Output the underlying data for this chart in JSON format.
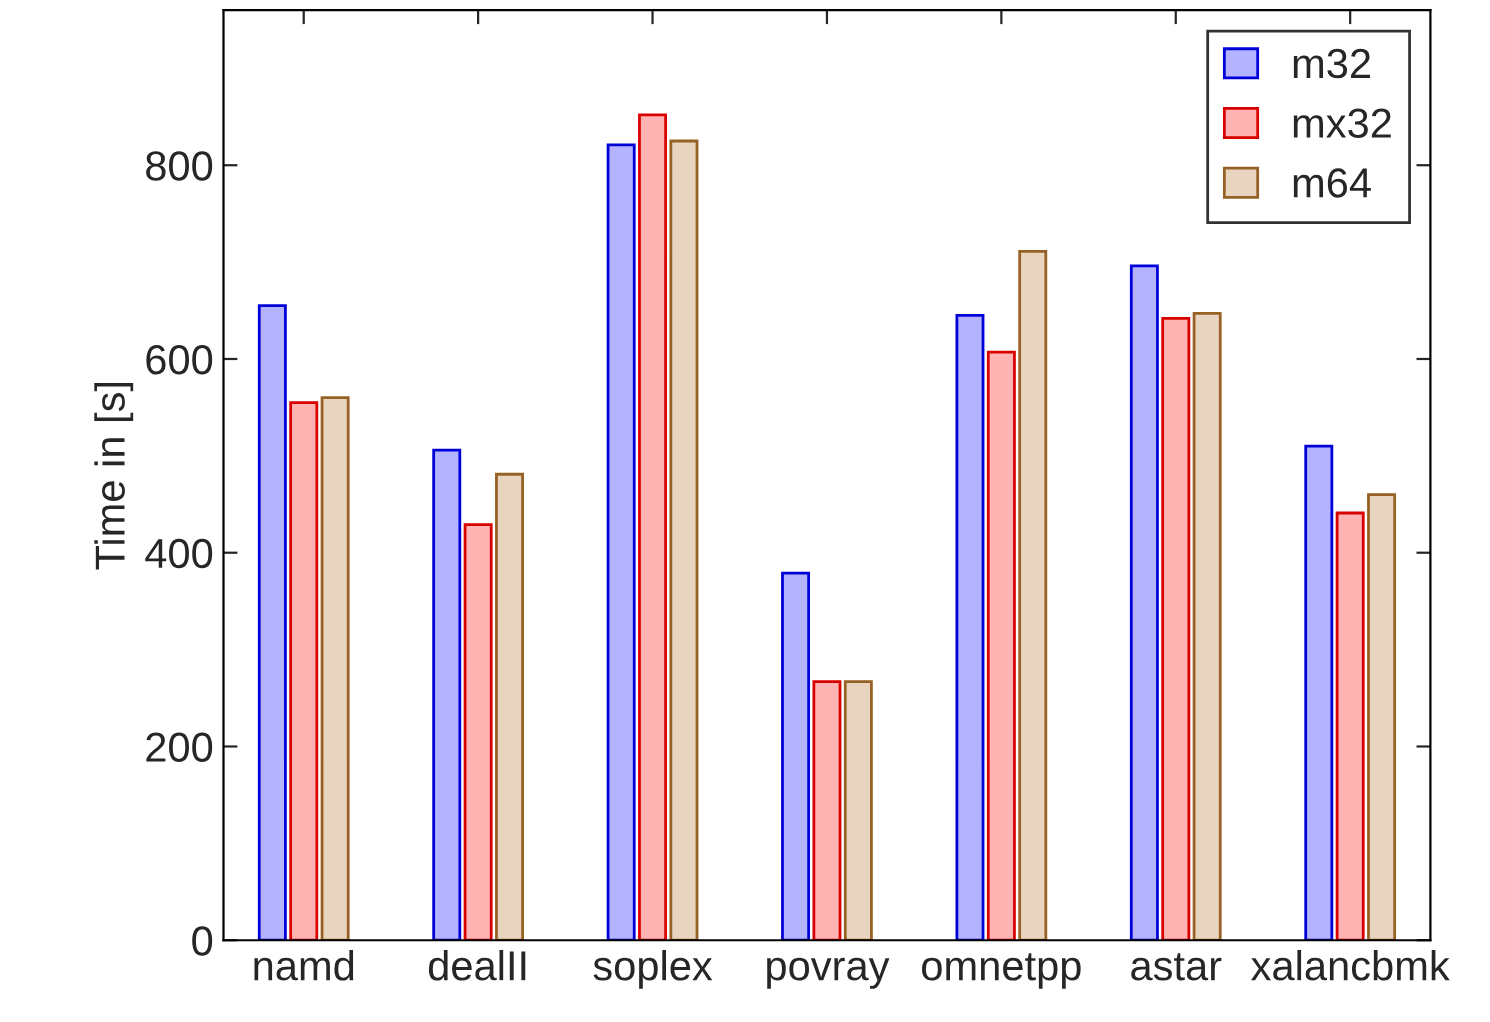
{
  "chart_data": {
    "type": "bar",
    "ylabel": "Time in [s]",
    "categories": [
      "namd",
      "dealII",
      "soplex",
      "povray",
      "omnetpp",
      "astar",
      "xalancbmk"
    ],
    "series": [
      {
        "name": "m32",
        "color": "#b3b3ff",
        "values": [
          655,
          506,
          821,
          379,
          645,
          696,
          510
        ]
      },
      {
        "name": "mx32",
        "color": "#ffb3b3",
        "values": [
          555,
          429,
          852,
          267,
          607,
          642,
          441
        ]
      },
      {
        "name": "m64",
        "color": "#e8d5c0",
        "values": [
          560,
          481,
          825,
          267,
          711,
          647,
          460
        ]
      }
    ],
    "ylim": [
      0,
      960
    ],
    "yticks": [
      0,
      200,
      400,
      600,
      800
    ],
    "grid": false,
    "legend": "top right"
  }
}
